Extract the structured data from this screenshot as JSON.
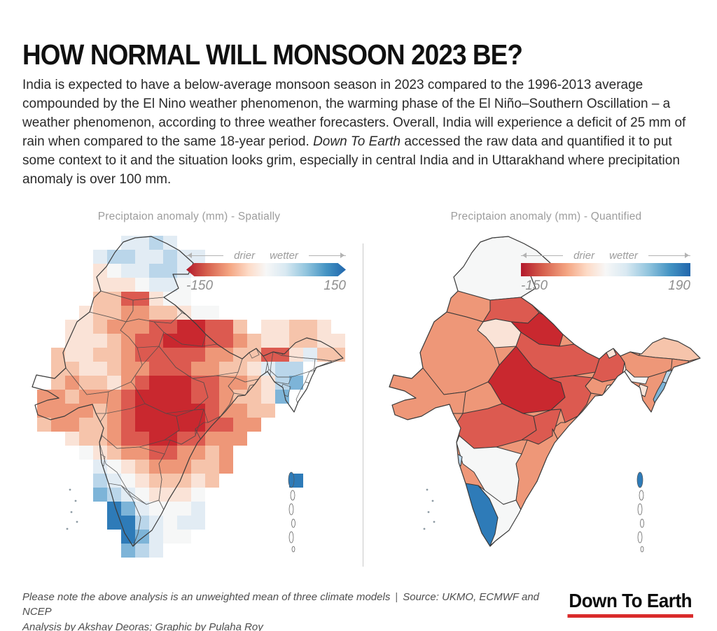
{
  "header": {
    "title": "HOW NORMAL WILL MONSOON 2023 BE?",
    "intro_before": "India is expected to have a below-average monsoon season in 2023 compared to the 1996-2013 average compounded by the El Nino weather phenomenon, the warming phase of the El Niño–Southern Oscillation – a weather phenomenon, according to three weather forecasters. Overall, India will experience a deficit of 25 mm of rain when compared to the same 18-year period. ",
    "intro_italic": "Down To Earth",
    "intro_after": " accessed the raw data and quantified it to put some context to it and the situation looks grim, especially in central India and in Uttarakhand where precipitation anomaly is over 100 mm."
  },
  "palette": {
    "A": "#c9282f",
    "B": "#dc5a50",
    "C": "#ee9778",
    "D": "#f6c4ab",
    "E": "#fae3d7",
    "F": "#f6f7f7",
    "G": "#e2ecf4",
    "H": "#bad6ea",
    "I": "#7db4d8",
    "J": "#2e7bb8"
  },
  "chart_data": [
    {
      "type": "heatmap",
      "variant": "gridded-raster-map",
      "title": "Preciptaion anomaly (mm) - Spatially",
      "legend": {
        "left_label": "drier",
        "right_label": "wetter",
        "min": "-150",
        "max": "150"
      },
      "units": "mm precipitation anomaly",
      "grid_rows": [
        "......GGHG.............",
        "....GHHGGHGG...........",
        "....EFGGHHGF...........",
        "....EEEFGGF............",
        "....DDBBEFF............",
        "...EDDCCDDEFF..........",
        "..EEDCCCBBAABBD.EEDDE..",
        "..EEEDCBBAAABBCDEEDDEE.",
        ".DEEDDCBBBBBCCDDBBEGDD.",
        ".DDEEDCCBBBCCDDEGHH....",
        ".DCDDECBAAABBCCDEHI....",
        "CCDCCCBAAAABBCDDEI.....",
        "CCCCDCBAAAAABCCDD......",
        "DCCDDCBAAAAABBCC.......",
        "..EDDCBBAABBCCC........",
        "...FEDCCBBCCDC.........",
        "....GFEDCCCDDC.........",
        "....HGFEDDDED.....J....",
        "....IHGFEEEF...........",
        ".....JIGFFFG...........",
        ".....JJHGFGG...........",
        "......JIGFF............",
        "......IHG.............."
      ]
    },
    {
      "type": "heatmap",
      "variant": "state-choropleth-map",
      "title": "Preciptaion anomaly (mm) - Quantified",
      "legend": {
        "left_label": "drier",
        "right_label": "wetter",
        "min": "-150",
        "max": "190"
      },
      "units": "mm precipitation anomaly",
      "states": [
        {
          "name": "jammu-and-kashmir",
          "tone": "F"
        },
        {
          "name": "punjab",
          "tone": "C"
        },
        {
          "name": "himachal-pradesh",
          "tone": "B"
        },
        {
          "name": "uttarakhand",
          "tone": "A"
        },
        {
          "name": "haryana",
          "tone": "E"
        },
        {
          "name": "rajasthan",
          "tone": "C"
        },
        {
          "name": "uttar-pradesh",
          "tone": "B"
        },
        {
          "name": "bihar",
          "tone": "B"
        },
        {
          "name": "sikkim",
          "tone": "E"
        },
        {
          "name": "west-bengal",
          "tone": "E"
        },
        {
          "name": "jharkhand",
          "tone": "C"
        },
        {
          "name": "madhya-pradesh",
          "tone": "A"
        },
        {
          "name": "gujarat",
          "tone": "C"
        },
        {
          "name": "chhattisgarh",
          "tone": "B"
        },
        {
          "name": "odisha",
          "tone": "C"
        },
        {
          "name": "maharashtra",
          "tone": "B"
        },
        {
          "name": "telangana",
          "tone": "B"
        },
        {
          "name": "andhra-pradesh",
          "tone": "C"
        },
        {
          "name": "karnataka",
          "tone": "F"
        },
        {
          "name": "goa",
          "tone": "H"
        },
        {
          "name": "kerala",
          "tone": "J"
        },
        {
          "name": "tamil-nadu",
          "tone": "F"
        },
        {
          "name": "arunachal-pradesh",
          "tone": "D"
        },
        {
          "name": "assam",
          "tone": "C"
        },
        {
          "name": "nagaland",
          "tone": "C"
        },
        {
          "name": "meghalaya",
          "tone": "F"
        },
        {
          "name": "manipur",
          "tone": "H"
        },
        {
          "name": "mizoram",
          "tone": "I"
        },
        {
          "name": "tripura",
          "tone": "E"
        }
      ]
    }
  ],
  "footer": {
    "note_line1": "Please note the above analysis is an unweighted mean of three climate models",
    "note_sep": "|",
    "note_source": "Source: UKMO, ECMWF and NCEP",
    "note_line2": "Analysis by Akshay Deoras; Graphic by Pulaha Roy",
    "logo_text": "Down To Earth"
  }
}
